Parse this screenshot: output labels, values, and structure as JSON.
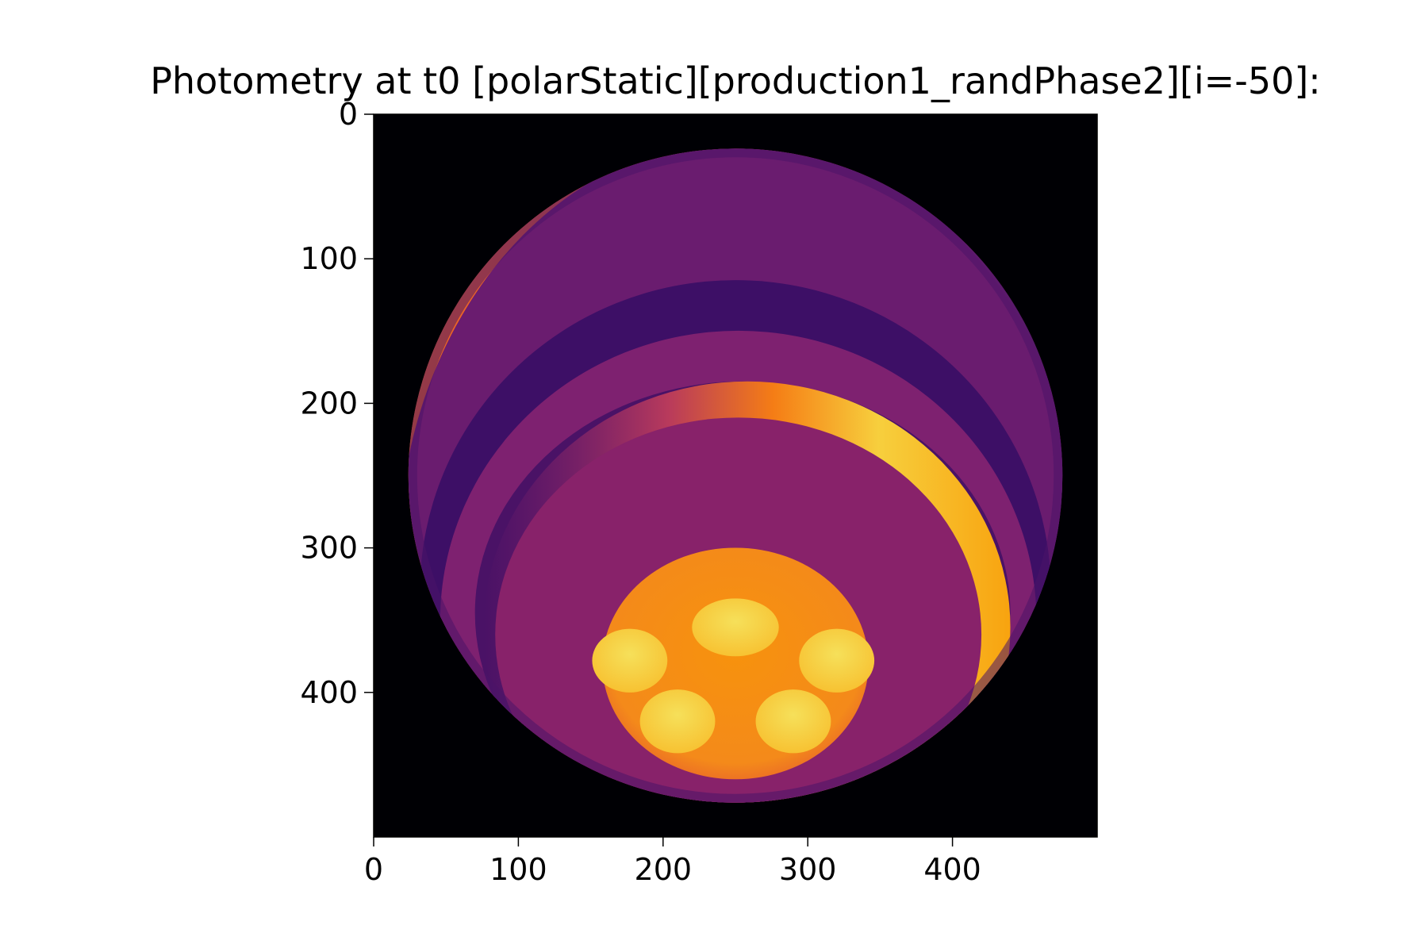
{
  "chart_data": {
    "type": "heatmap",
    "title": "Photometry at t0 [polarStatic][production1_randPhase2][i=-50]:",
    "xlabel": "",
    "ylabel": "",
    "xlim": [
      0,
      500
    ],
    "ylim": [
      500,
      0
    ],
    "x_ticks": [
      0,
      100,
      200,
      300,
      400
    ],
    "y_ticks": [
      0,
      100,
      200,
      300,
      400
    ],
    "x_tick_labels": [
      "0",
      "100",
      "200",
      "300",
      "400"
    ],
    "y_tick_labels": [
      "0",
      "100",
      "200",
      "300",
      "400"
    ],
    "colormap": "inferno",
    "background": "#000000",
    "grid": false,
    "image_description_values": {
      "disk": {
        "cx": 250,
        "cy": 250,
        "rx": 226,
        "ry": 226
      },
      "spot": {
        "cx": 250,
        "cy": 380,
        "rx": 92,
        "ry": 80
      },
      "spot_blobs": [
        {
          "cx": 250,
          "cy": 355
        },
        {
          "cx": 177,
          "cy": 378
        },
        {
          "cx": 320,
          "cy": 378
        },
        {
          "cx": 210,
          "cy": 420
        },
        {
          "cx": 290,
          "cy": 420
        }
      ]
    }
  }
}
